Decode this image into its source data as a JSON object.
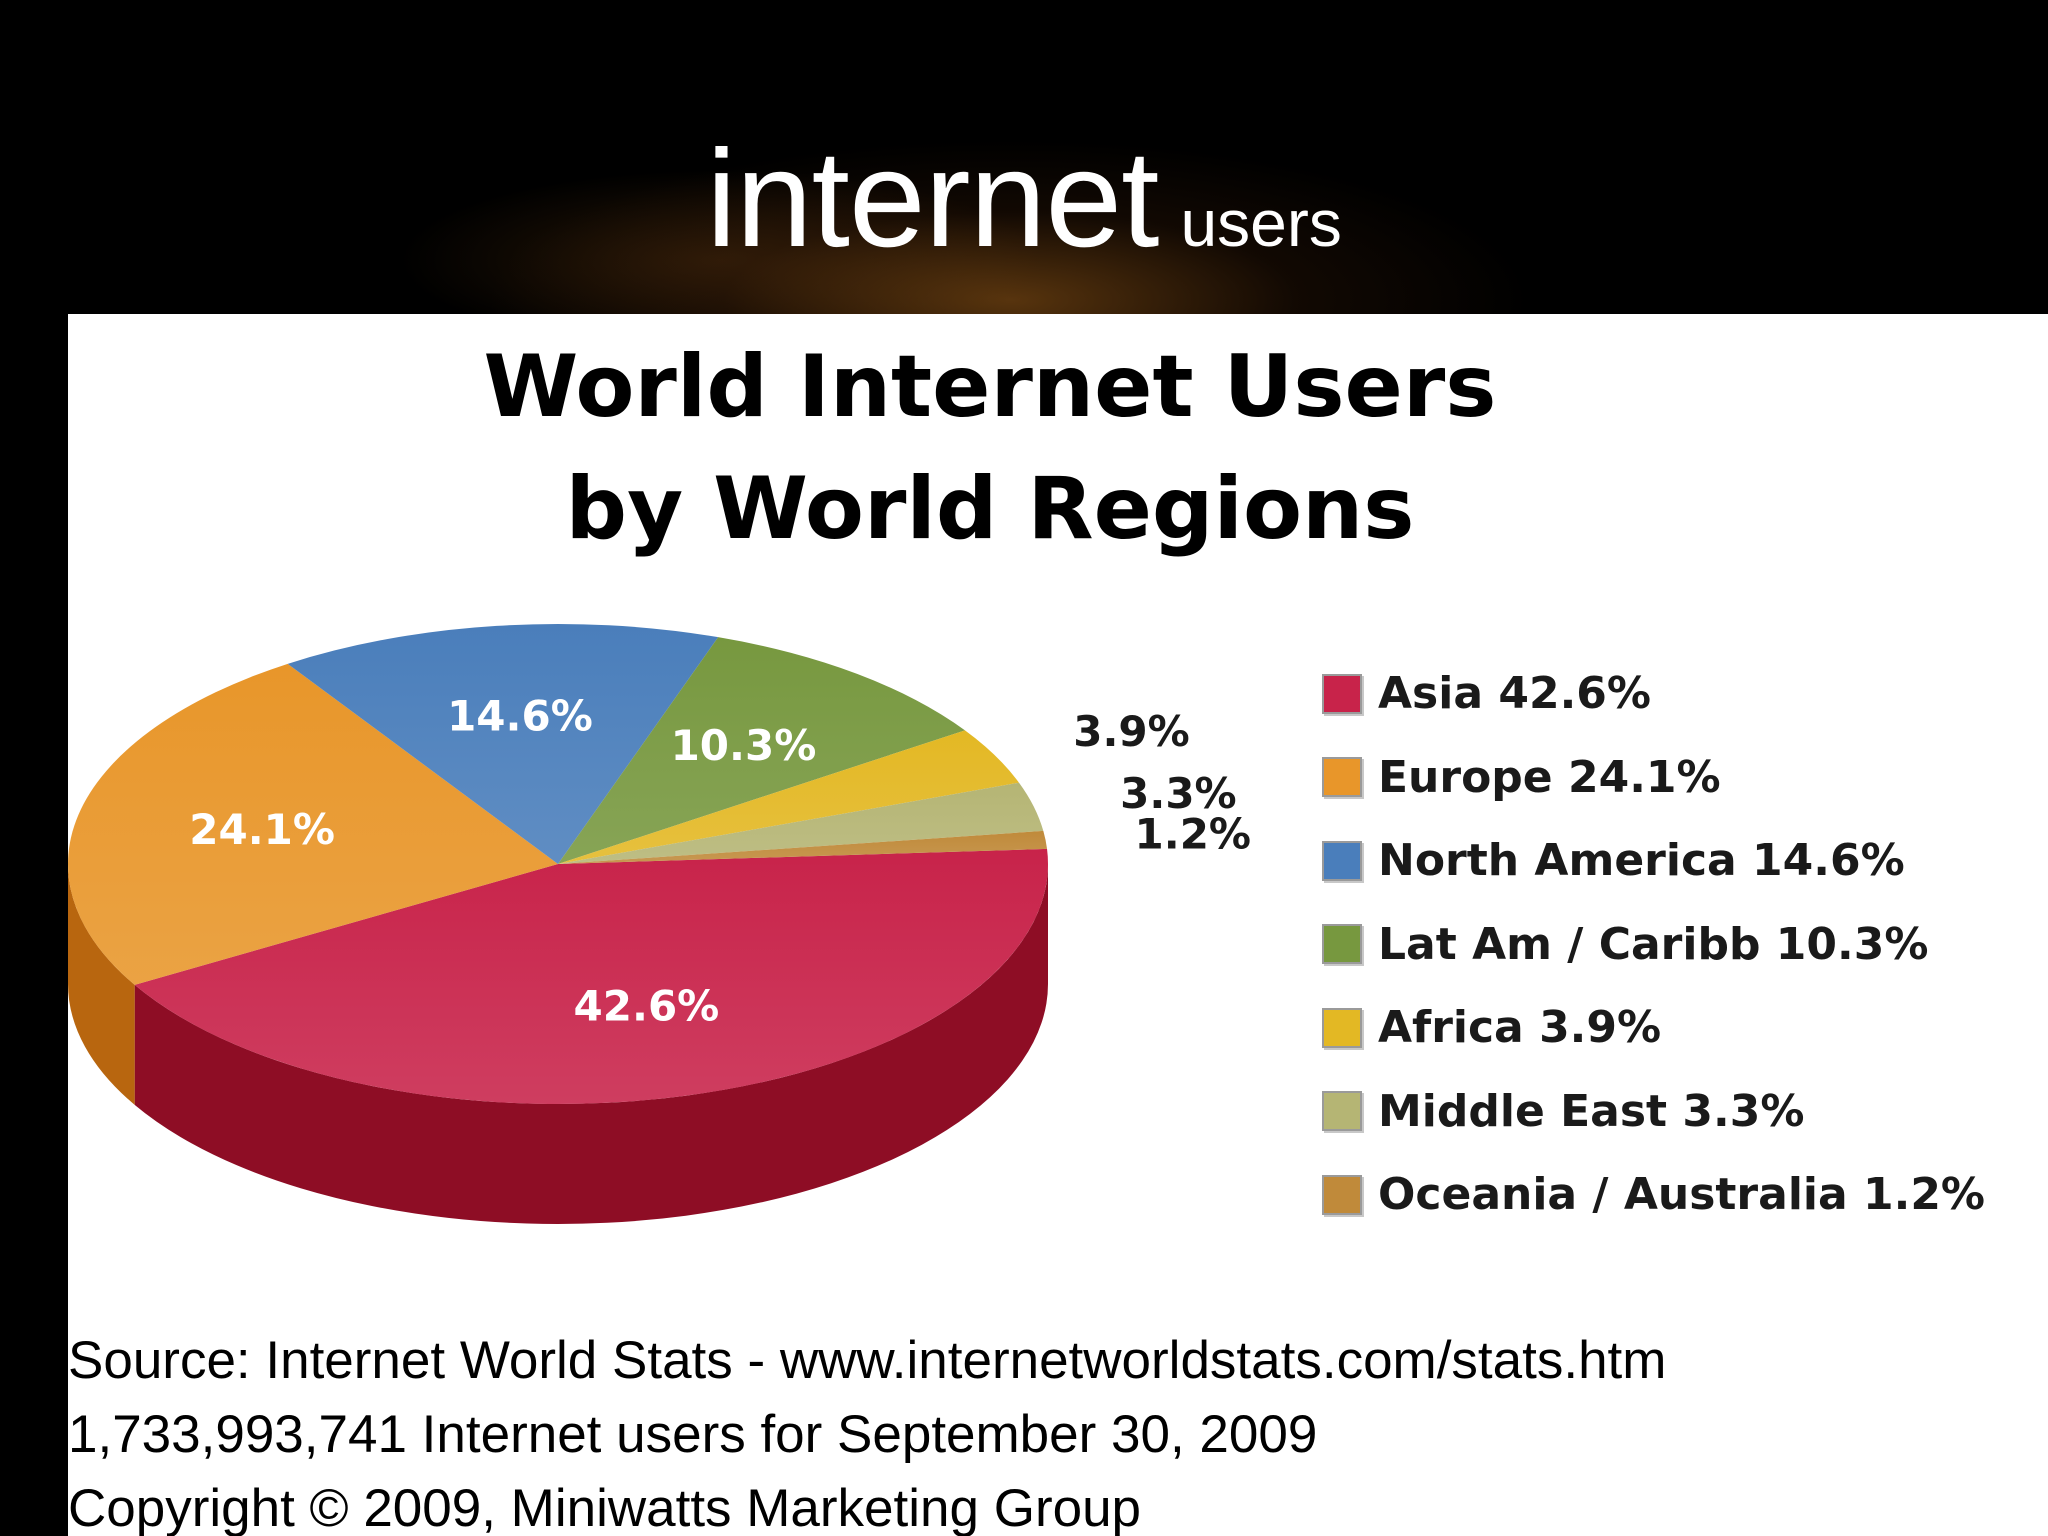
{
  "slide": {
    "title_main": "internet",
    "title_sub": "users"
  },
  "chart_data": {
    "type": "pie",
    "title": [
      "World Internet Users",
      "by World Regions"
    ],
    "slices": [
      {
        "name": "Asia",
        "value": 42.6,
        "label": "42.6%",
        "legend": "Asia  42.6%",
        "color": "#c8234a",
        "side": "#8e0d25"
      },
      {
        "name": "Europe",
        "value": 24.1,
        "label": "24.1%",
        "legend": "Europe  24.1%",
        "color": "#e8962a",
        "side": "#b8660f"
      },
      {
        "name": "North America",
        "value": 14.6,
        "label": "14.6%",
        "legend": "North America  14.6%",
        "color": "#4a7ebb",
        "side": "#2d5a8f"
      },
      {
        "name": "Lat Am / Caribb",
        "value": 10.3,
        "label": "10.3%",
        "legend": "Lat Am / Caribb 10.3%",
        "color": "#77983f",
        "side": "#56722a"
      },
      {
        "name": "Africa",
        "value": 3.9,
        "label": "3.9%",
        "legend": "Africa  3.9%",
        "color": "#e3b824",
        "side": "#b08a10"
      },
      {
        "name": "Middle East",
        "value": 3.3,
        "label": "3.3%",
        "legend": "Middle East  3.3%",
        "color": "#b5b574",
        "side": "#8a8a50"
      },
      {
        "name": "Oceania / Australia",
        "value": 1.2,
        "label": "1.2%",
        "legend": "Oceania / Australia  1.2%",
        "color": "#c08a3a",
        "side": "#8f6222"
      }
    ],
    "legend_position": "right"
  },
  "footer": {
    "line1": "Source: Internet World Stats -  www.internetworldstats.com/stats.htm",
    "line2": "1,733,993,741 Internet users for September 30, 2009",
    "line3": "Copyright © 2009, Miniwatts Marketing Group"
  }
}
